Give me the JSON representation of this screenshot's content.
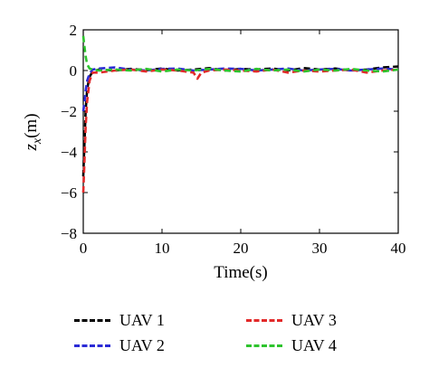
{
  "chart_data": {
    "type": "line",
    "title": "",
    "xlabel": "Time(s)",
    "ylabel": "z_x(m)",
    "xlim": [
      0,
      40
    ],
    "ylim": [
      -8,
      2
    ],
    "xticks": [
      0,
      10,
      20,
      30,
      40
    ],
    "yticks": [
      -8,
      -6,
      -4,
      -2,
      0,
      2
    ],
    "grid": false,
    "legend_position": "bottom",
    "series": [
      {
        "name": "UAV 1",
        "color": "#000000",
        "x": [
          0,
          0.15,
          0.3,
          0.5,
          0.8,
          1.2,
          2,
          4,
          6,
          8,
          10,
          12,
          14,
          16,
          18,
          20,
          22,
          24,
          26,
          28,
          30,
          32,
          34,
          36,
          38,
          40
        ],
        "y": [
          -5.2,
          -3.6,
          -2.0,
          -0.9,
          -0.3,
          -0.05,
          0.05,
          0.0,
          0.08,
          0.02,
          0.1,
          0.0,
          0.05,
          0.12,
          0.0,
          0.08,
          0.05,
          0.1,
          0.0,
          0.12,
          0.05,
          0.1,
          0.0,
          0.05,
          0.15,
          0.2
        ]
      },
      {
        "name": "UAV 2",
        "color": "#2b2bd6",
        "x": [
          0,
          0.15,
          0.3,
          0.5,
          0.8,
          1.2,
          2,
          4,
          6,
          8,
          10,
          12,
          14,
          16,
          18,
          20,
          22,
          24,
          26,
          28,
          30,
          32,
          34,
          36,
          38,
          40
        ],
        "y": [
          -2.0,
          -1.6,
          -1.0,
          -0.5,
          -0.15,
          0.05,
          0.1,
          0.15,
          0.05,
          0.0,
          0.08,
          0.1,
          0.0,
          0.05,
          0.1,
          0.08,
          0.0,
          0.05,
          0.1,
          0.0,
          0.05,
          0.08,
          0.0,
          0.05,
          0.1,
          0.05
        ]
      },
      {
        "name": "UAV 3",
        "color": "#e22a2a",
        "x": [
          0,
          0.15,
          0.3,
          0.5,
          0.8,
          1.2,
          2,
          4,
          6,
          8,
          10,
          12,
          14,
          14.5,
          15,
          16,
          18,
          20,
          22,
          24,
          26,
          28,
          30,
          32,
          34,
          36,
          38,
          40
        ],
        "y": [
          -6.0,
          -4.5,
          -2.8,
          -1.5,
          -0.5,
          -0.1,
          -0.1,
          0.0,
          0.05,
          -0.05,
          0.05,
          0.0,
          -0.1,
          -0.4,
          -0.1,
          0.0,
          0.05,
          0.0,
          -0.05,
          0.05,
          -0.1,
          0.0,
          -0.05,
          0.0,
          0.05,
          -0.1,
          0.0,
          0.05
        ]
      },
      {
        "name": "UAV 4",
        "color": "#2ec42e",
        "x": [
          0,
          0.15,
          0.3,
          0.5,
          0.8,
          1.2,
          2,
          4,
          6,
          8,
          10,
          12,
          14,
          16,
          18,
          20,
          22,
          24,
          26,
          28,
          30,
          32,
          34,
          36,
          38,
          40
        ],
        "y": [
          1.7,
          1.2,
          0.7,
          0.3,
          0.1,
          0.05,
          0.0,
          0.05,
          0.0,
          0.08,
          -0.05,
          0.05,
          0.0,
          0.08,
          0.0,
          -0.05,
          0.08,
          0.0,
          0.05,
          -0.05,
          0.05,
          0.0,
          0.08,
          0.0,
          -0.05,
          0.05
        ]
      }
    ]
  }
}
